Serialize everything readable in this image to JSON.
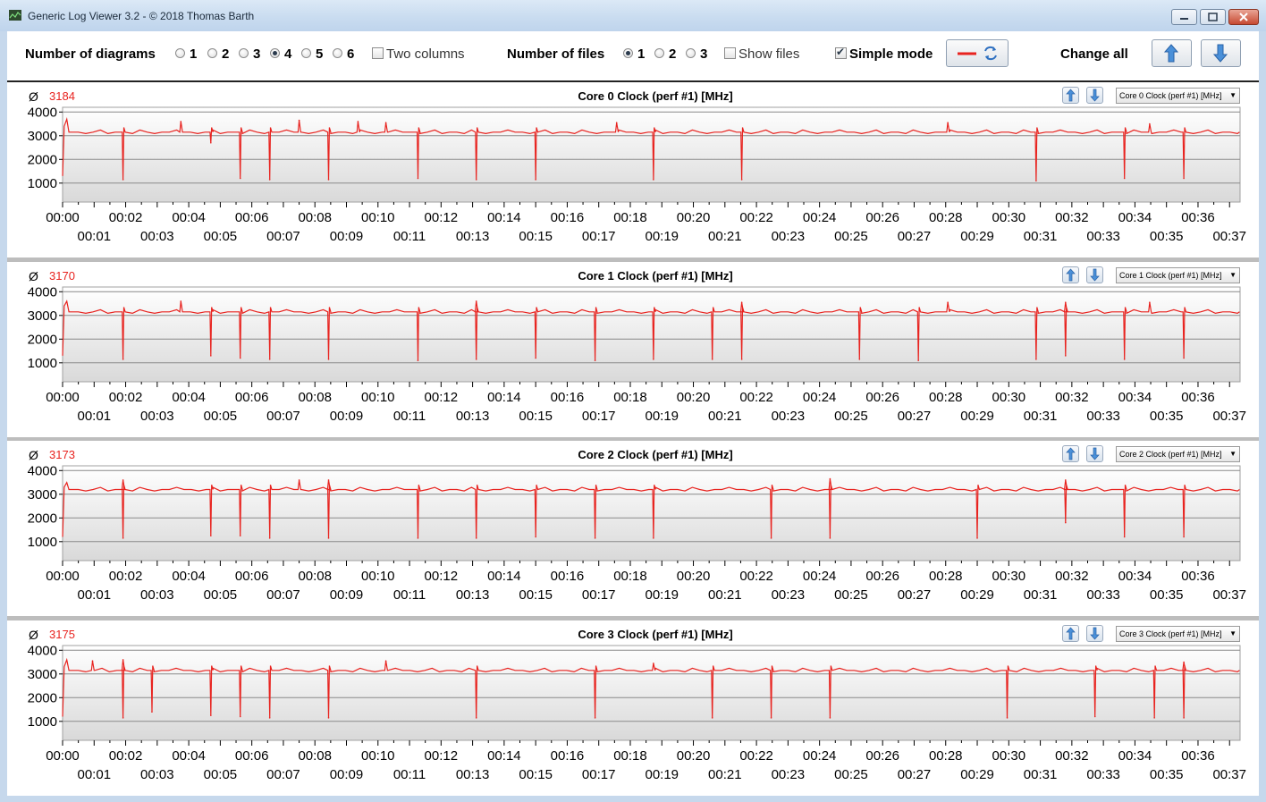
{
  "window": {
    "title": "Generic Log Viewer 3.2 - © 2018 Thomas Barth"
  },
  "toolbar": {
    "num_diagrams_label": "Number of diagrams",
    "diagram_options": [
      "1",
      "2",
      "3",
      "4",
      "5",
      "6"
    ],
    "diagram_selected": "4",
    "two_columns_label": "Two columns",
    "two_columns_checked": false,
    "num_files_label": "Number of files",
    "file_options": [
      "1",
      "2",
      "3"
    ],
    "file_selected": "1",
    "show_files_label": "Show files",
    "show_files_checked": false,
    "simple_mode_label": "Simple mode",
    "simple_mode_checked": true,
    "change_all_label": "Change all",
    "line_color": "#e8231f"
  },
  "chart_data": [
    {
      "type": "line",
      "title": "Core 0 Clock (perf #1) [MHz]",
      "average_symbol": "Ø",
      "average": "3184",
      "selector": "Core 0 Clock (perf #1) [MHz]",
      "yticks": [
        4000,
        3000,
        2000,
        1000
      ],
      "ylim": [
        200,
        4200
      ],
      "xlim_seconds": [
        0,
        2240
      ],
      "xticks_top": [
        "00:00",
        "00:02",
        "00:04",
        "00:06",
        "00:08",
        "00:10",
        "00:12",
        "00:14",
        "00:16",
        "00:18",
        "00:20",
        "00:22",
        "00:24",
        "00:26",
        "00:28",
        "00:30",
        "00:32",
        "00:34",
        "00:36"
      ],
      "xticks_bottom": [
        "00:01",
        "00:03",
        "00:05",
        "00:07",
        "00:09",
        "00:11",
        "00:13",
        "00:15",
        "00:17",
        "00:19",
        "00:21",
        "00:23",
        "00:25",
        "00:27",
        "00:29",
        "00:31",
        "00:33",
        "00:35",
        "00:37"
      ],
      "series": [
        {
          "color": "#e8231f",
          "baseline": 3150,
          "start": {
            "t": [
              0,
              3,
              8
            ],
            "v": [
              1300,
              3400,
              3700
            ]
          },
          "dips": [
            {
              "t": 115,
              "v": 1150
            },
            {
              "t": 282,
              "v": 2700
            },
            {
              "t": 338,
              "v": 1200
            },
            {
              "t": 394,
              "v": 1150
            },
            {
              "t": 506,
              "v": 1150
            },
            {
              "t": 676,
              "v": 1200
            },
            {
              "t": 787,
              "v": 1150
            },
            {
              "t": 900,
              "v": 1150
            },
            {
              "t": 1124,
              "v": 1150
            },
            {
              "t": 1292,
              "v": 1150
            },
            {
              "t": 1852,
              "v": 1100
            },
            {
              "t": 2020,
              "v": 1200
            },
            {
              "t": 2133,
              "v": 1200
            }
          ],
          "peaks": [
            {
              "t": 225,
              "v": 3600
            },
            {
              "t": 450,
              "v": 3650
            },
            {
              "t": 562,
              "v": 3600
            },
            {
              "t": 615,
              "v": 3550
            },
            {
              "t": 1054,
              "v": 3550
            },
            {
              "t": 1684,
              "v": 3550
            },
            {
              "t": 2068,
              "v": 3500
            }
          ]
        }
      ]
    },
    {
      "type": "line",
      "title": "Core 1 Clock (perf #1) [MHz]",
      "average_symbol": "Ø",
      "average": "3170",
      "selector": "Core 1 Clock (perf #1) [MHz]",
      "yticks": [
        4000,
        3000,
        2000,
        1000
      ],
      "ylim": [
        200,
        4200
      ],
      "xlim_seconds": [
        0,
        2240
      ],
      "xticks_top": [
        "00:00",
        "00:02",
        "00:04",
        "00:06",
        "00:08",
        "00:10",
        "00:12",
        "00:14",
        "00:16",
        "00:18",
        "00:20",
        "00:22",
        "00:24",
        "00:26",
        "00:28",
        "00:30",
        "00:32",
        "00:34",
        "00:36"
      ],
      "xticks_bottom": [
        "00:01",
        "00:03",
        "00:05",
        "00:07",
        "00:09",
        "00:11",
        "00:13",
        "00:15",
        "00:17",
        "00:19",
        "00:21",
        "00:23",
        "00:25",
        "00:27",
        "00:29",
        "00:31",
        "00:33",
        "00:35",
        "00:37"
      ],
      "series": [
        {
          "color": "#e8231f",
          "baseline": 3150,
          "start": {
            "t": [
              0,
              3,
              8
            ],
            "v": [
              1300,
              3400,
              3600
            ]
          },
          "dips": [
            {
              "t": 115,
              "v": 1150
            },
            {
              "t": 282,
              "v": 1300
            },
            {
              "t": 338,
              "v": 1200
            },
            {
              "t": 394,
              "v": 1150
            },
            {
              "t": 506,
              "v": 1150
            },
            {
              "t": 676,
              "v": 1100
            },
            {
              "t": 787,
              "v": 1150
            },
            {
              "t": 900,
              "v": 1200
            },
            {
              "t": 1013,
              "v": 1100
            },
            {
              "t": 1124,
              "v": 1150
            },
            {
              "t": 1236,
              "v": 1150
            },
            {
              "t": 1292,
              "v": 1150
            },
            {
              "t": 1516,
              "v": 1150
            },
            {
              "t": 1628,
              "v": 1100
            },
            {
              "t": 1852,
              "v": 1150
            },
            {
              "t": 1908,
              "v": 1300
            },
            {
              "t": 2020,
              "v": 1150
            },
            {
              "t": 2133,
              "v": 1200
            }
          ],
          "peaks": [
            {
              "t": 225,
              "v": 3600
            },
            {
              "t": 787,
              "v": 3600
            },
            {
              "t": 1292,
              "v": 3550
            },
            {
              "t": 1684,
              "v": 3550
            },
            {
              "t": 1908,
              "v": 3550
            },
            {
              "t": 2068,
              "v": 3550
            }
          ]
        }
      ]
    },
    {
      "type": "line",
      "title": "Core 2 Clock (perf #1) [MHz]",
      "average_symbol": "Ø",
      "average": "3173",
      "selector": "Core 2 Clock (perf #1) [MHz]",
      "yticks": [
        4000,
        3000,
        2000,
        1000
      ],
      "ylim": [
        200,
        4200
      ],
      "xlim_seconds": [
        0,
        2240
      ],
      "xticks_top": [
        "00:00",
        "00:02",
        "00:04",
        "00:06",
        "00:08",
        "00:10",
        "00:12",
        "00:14",
        "00:16",
        "00:18",
        "00:20",
        "00:22",
        "00:24",
        "00:26",
        "00:28",
        "00:30",
        "00:32",
        "00:34",
        "00:36"
      ],
      "xticks_bottom": [
        "00:01",
        "00:03",
        "00:05",
        "00:07",
        "00:09",
        "00:11",
        "00:13",
        "00:15",
        "00:17",
        "00:19",
        "00:21",
        "00:23",
        "00:25",
        "00:27",
        "00:29",
        "00:31",
        "00:33",
        "00:35",
        "00:37"
      ],
      "series": [
        {
          "color": "#e8231f",
          "baseline": 3200,
          "start": {
            "t": [
              0,
              3,
              8
            ],
            "v": [
              1200,
              3300,
              3500
            ]
          },
          "dips": [
            {
              "t": 115,
              "v": 1150
            },
            {
              "t": 282,
              "v": 1250
            },
            {
              "t": 338,
              "v": 1250
            },
            {
              "t": 394,
              "v": 1150
            },
            {
              "t": 506,
              "v": 1150
            },
            {
              "t": 676,
              "v": 1150
            },
            {
              "t": 787,
              "v": 1150
            },
            {
              "t": 900,
              "v": 1200
            },
            {
              "t": 1013,
              "v": 1150
            },
            {
              "t": 1124,
              "v": 1150
            },
            {
              "t": 1348,
              "v": 1150
            },
            {
              "t": 1460,
              "v": 1150
            },
            {
              "t": 1740,
              "v": 1150
            },
            {
              "t": 1908,
              "v": 1800
            },
            {
              "t": 2020,
              "v": 1200
            },
            {
              "t": 2133,
              "v": 1200
            }
          ],
          "peaks": [
            {
              "t": 115,
              "v": 3600
            },
            {
              "t": 450,
              "v": 3600
            },
            {
              "t": 506,
              "v": 3600
            },
            {
              "t": 1460,
              "v": 3650
            },
            {
              "t": 1908,
              "v": 3600
            }
          ]
        }
      ]
    },
    {
      "type": "line",
      "title": "Core 3 Clock (perf #1) [MHz]",
      "average_symbol": "Ø",
      "average": "3175",
      "selector": "Core 3 Clock (perf #1) [MHz]",
      "yticks": [
        4000,
        3000,
        2000,
        1000
      ],
      "ylim": [
        200,
        4200
      ],
      "xlim_seconds": [
        0,
        2240
      ],
      "xticks_top": [
        "00:00",
        "00:02",
        "00:04",
        "00:06",
        "00:08",
        "00:10",
        "00:12",
        "00:14",
        "00:16",
        "00:18",
        "00:20",
        "00:22",
        "00:24",
        "00:26",
        "00:28",
        "00:30",
        "00:32",
        "00:34",
        "00:36"
      ],
      "xticks_bottom": [
        "00:01",
        "00:03",
        "00:05",
        "00:07",
        "00:09",
        "00:11",
        "00:13",
        "00:15",
        "00:17",
        "00:19",
        "00:21",
        "00:23",
        "00:25",
        "00:27",
        "00:29",
        "00:31",
        "00:33",
        "00:35",
        "00:37"
      ],
      "series": [
        {
          "color": "#e8231f",
          "baseline": 3150,
          "start": {
            "t": [
              0,
              3,
              8
            ],
            "v": [
              1200,
              3300,
              3600
            ]
          },
          "dips": [
            {
              "t": 115,
              "v": 1150
            },
            {
              "t": 170,
              "v": 1400
            },
            {
              "t": 282,
              "v": 1250
            },
            {
              "t": 338,
              "v": 1200
            },
            {
              "t": 394,
              "v": 1150
            },
            {
              "t": 506,
              "v": 1150
            },
            {
              "t": 787,
              "v": 1150
            },
            {
              "t": 1013,
              "v": 1150
            },
            {
              "t": 1236,
              "v": 1150
            },
            {
              "t": 1348,
              "v": 1150
            },
            {
              "t": 1460,
              "v": 1150
            },
            {
              "t": 1797,
              "v": 1150
            },
            {
              "t": 1964,
              "v": 1200
            },
            {
              "t": 2077,
              "v": 1150
            },
            {
              "t": 2133,
              "v": 1150
            }
          ],
          "peaks": [
            {
              "t": 57,
              "v": 3550
            },
            {
              "t": 115,
              "v": 3600
            },
            {
              "t": 615,
              "v": 3550
            },
            {
              "t": 1124,
              "v": 3450
            },
            {
              "t": 2133,
              "v": 3500
            }
          ]
        }
      ]
    }
  ]
}
